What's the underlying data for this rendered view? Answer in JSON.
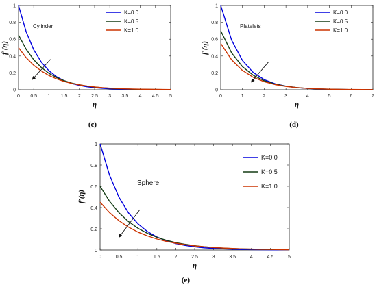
{
  "chart_data": [
    {
      "type": "line",
      "panel_label": "(c)",
      "annotation": "Cylinder",
      "xlabel": "η",
      "ylabel": "f′(η)",
      "xlim": [
        0,
        5
      ],
      "ylim": [
        0,
        1
      ],
      "xticks": [
        "0",
        "0.5",
        "1",
        "1.5",
        "2",
        "2.5",
        "3",
        "3.5",
        "4",
        "4.5",
        "5"
      ],
      "yticks": [
        "0",
        "0.2",
        "0.4",
        "0.6",
        "0.8",
        "1"
      ],
      "legend_position": "top-right",
      "arrow": {
        "from": [
          1.05,
          0.36
        ],
        "to": [
          0.45,
          0.12
        ]
      },
      "x": [
        0,
        0.25,
        0.5,
        0.75,
        1,
        1.25,
        1.5,
        1.75,
        2,
        2.25,
        2.5,
        2.75,
        3,
        3.25,
        3.5,
        3.75,
        4,
        4.25,
        4.5,
        4.75,
        5
      ],
      "series": [
        {
          "name": "K=0.0",
          "color": "#0000dd",
          "values": [
            1,
            0.689,
            0.475,
            0.327,
            0.225,
            0.155,
            0.107,
            0.074,
            0.051,
            0.035,
            0.024,
            0.017,
            0.011,
            0.008,
            0.005,
            0.004,
            0.003,
            0.002,
            0.001,
            0.001,
            0.001
          ]
        },
        {
          "name": "K=0.5",
          "color": "#143c14",
          "values": [
            0.65,
            0.481,
            0.356,
            0.264,
            0.195,
            0.145,
            0.107,
            0.079,
            0.059,
            0.043,
            0.032,
            0.024,
            0.018,
            0.013,
            0.01,
            0.007,
            0.005,
            0.004,
            0.003,
            0.002,
            0.002
          ]
        },
        {
          "name": "K=1.0",
          "color": "#cc3300",
          "values": [
            0.5,
            0.381,
            0.291,
            0.222,
            0.169,
            0.129,
            0.098,
            0.075,
            0.057,
            0.044,
            0.033,
            0.025,
            0.019,
            0.015,
            0.011,
            0.009,
            0.007,
            0.005,
            0.004,
            0.003,
            0.002
          ]
        }
      ]
    },
    {
      "type": "line",
      "panel_label": "(d)",
      "annotation": "Platelets",
      "xlabel": "η",
      "ylabel": "f′(η)",
      "xlim": [
        0,
        7
      ],
      "ylim": [
        0,
        1
      ],
      "xticks": [
        "0",
        "1",
        "2",
        "3",
        "4",
        "5",
        "6",
        "7"
      ],
      "yticks": [
        "0",
        "0.2",
        "0.4",
        "0.6",
        "0.8",
        "1"
      ],
      "legend_position": "top-right",
      "arrow": {
        "from": [
          2.2,
          0.33
        ],
        "to": [
          1.4,
          0.09
        ]
      },
      "x": [
        0,
        0.5,
        1,
        1.5,
        2,
        2.5,
        3,
        3.5,
        4,
        4.5,
        5,
        5.5,
        6,
        6.5,
        7
      ],
      "series": [
        {
          "name": "K=0.0",
          "color": "#0000dd",
          "values": [
            1,
            0.589,
            0.347,
            0.204,
            0.12,
            0.071,
            0.042,
            0.025,
            0.015,
            0.009,
            0.005,
            0.003,
            0.002,
            0.001,
            0.001
          ]
        },
        {
          "name": "K=0.5",
          "color": "#143c14",
          "values": [
            0.7,
            0.438,
            0.274,
            0.171,
            0.107,
            0.067,
            0.042,
            0.026,
            0.016,
            0.01,
            0.006,
            0.004,
            0.002,
            0.002,
            0.001
          ]
        },
        {
          "name": "K=1.0",
          "color": "#cc3300",
          "values": [
            0.55,
            0.355,
            0.229,
            0.147,
            0.095,
            0.061,
            0.039,
            0.025,
            0.016,
            0.011,
            0.007,
            0.004,
            0.003,
            0.002,
            0.001
          ]
        }
      ]
    },
    {
      "type": "line",
      "panel_label": "(e)",
      "annotation": "Sphere",
      "xlabel": "η",
      "ylabel": "f′(η)",
      "xlim": [
        0,
        5
      ],
      "ylim": [
        0,
        1
      ],
      "xticks": [
        "0",
        "0.5",
        "1",
        "1.5",
        "2",
        "2.5",
        "3",
        "3.5",
        "4",
        "4.5",
        "5"
      ],
      "yticks": [
        "0",
        "0.2",
        "0.4",
        "0.6",
        "0.8",
        "1"
      ],
      "legend_position": "top-right",
      "arrow": {
        "from": [
          1.05,
          0.38
        ],
        "to": [
          0.5,
          0.12
        ]
      },
      "x": [
        0,
        0.25,
        0.5,
        0.75,
        1,
        1.25,
        1.5,
        1.75,
        2,
        2.25,
        2.5,
        2.75,
        3,
        3.25,
        3.5,
        3.75,
        4,
        4.25,
        4.5,
        4.75,
        5
      ],
      "series": [
        {
          "name": "K=0.0",
          "color": "#0000dd",
          "values": [
            1,
            0.705,
            0.497,
            0.35,
            0.247,
            0.174,
            0.123,
            0.087,
            0.061,
            0.043,
            0.03,
            0.021,
            0.015,
            0.011,
            0.008,
            0.005,
            0.004,
            0.003,
            0.002,
            0.001,
            0.001
          ]
        },
        {
          "name": "K=0.5",
          "color": "#143c14",
          "values": [
            0.6,
            0.459,
            0.351,
            0.268,
            0.205,
            0.157,
            0.12,
            0.092,
            0.07,
            0.054,
            0.041,
            0.031,
            0.024,
            0.018,
            0.014,
            0.011,
            0.008,
            0.006,
            0.005,
            0.004,
            0.003
          ]
        },
        {
          "name": "K=1.0",
          "color": "#cc3300",
          "values": [
            0.45,
            0.352,
            0.276,
            0.216,
            0.169,
            0.133,
            0.104,
            0.081,
            0.064,
            0.05,
            0.039,
            0.031,
            0.024,
            0.019,
            0.015,
            0.011,
            0.009,
            0.007,
            0.006,
            0.004,
            0.003
          ]
        }
      ]
    }
  ]
}
